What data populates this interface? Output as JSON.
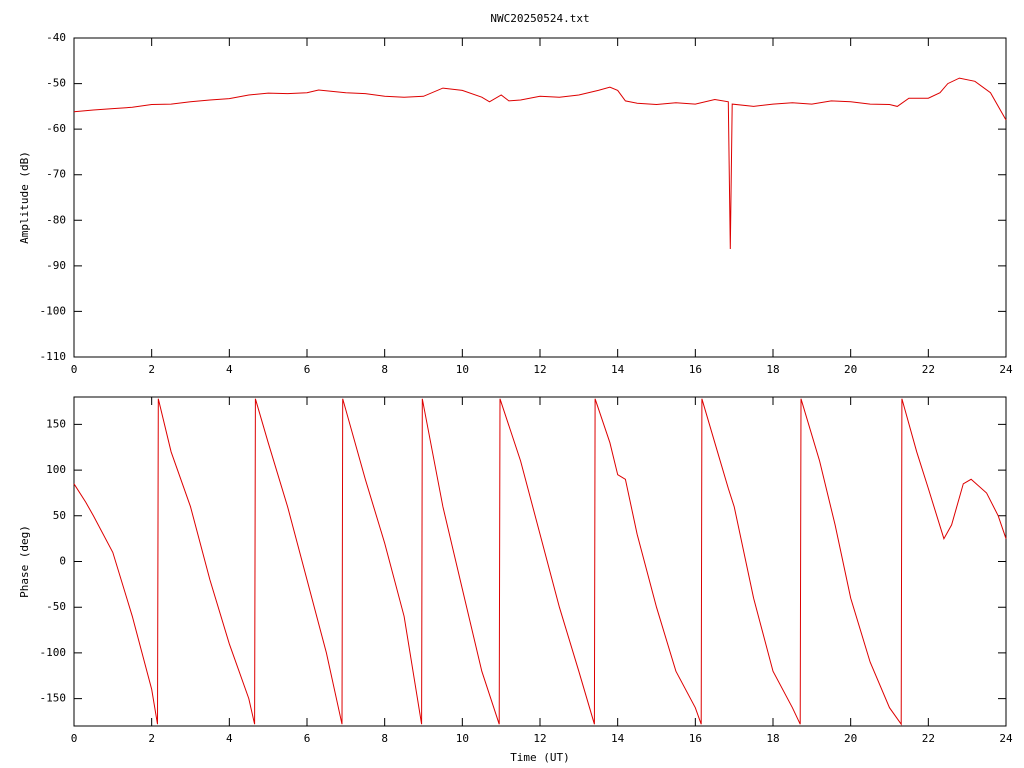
{
  "chart_data": [
    {
      "type": "line",
      "title": "NWC20250524.txt",
      "y_label": "Amplitude (dB)",
      "color": "#dd0000",
      "xlim": [
        0,
        24
      ],
      "xticks": [
        0,
        2,
        4,
        6,
        8,
        10,
        12,
        14,
        16,
        18,
        20,
        22,
        24
      ],
      "ylim": [
        -110,
        -40
      ],
      "yticks": [
        -110,
        -100,
        -90,
        -80,
        -70,
        -60,
        -50,
        -40
      ],
      "x": [
        0,
        0.5,
        1,
        1.5,
        2,
        2.5,
        3,
        3.5,
        4,
        4.5,
        5,
        5.5,
        6,
        6.3,
        7,
        7.5,
        8,
        8.5,
        9,
        9.5,
        10,
        10.5,
        10.7,
        11,
        11.2,
        11.5,
        12,
        12.5,
        13,
        13.5,
        13.8,
        14,
        14.2,
        14.5,
        15,
        15.5,
        16,
        16.5,
        16.85,
        16.9,
        16.95,
        17.5,
        18,
        18.5,
        19,
        19.5,
        20,
        20.5,
        21,
        21.2,
        21.5,
        22,
        22.3,
        22.5,
        22.8,
        23.2,
        23.6,
        24
      ],
      "values": [
        -56.2,
        -55.8,
        -55.5,
        -55.2,
        -54.6,
        -54.5,
        -54,
        -53.6,
        -53.3,
        -52.5,
        -52.1,
        -52.2,
        -52,
        -51.4,
        -52,
        -52.2,
        -52.8,
        -53,
        -52.8,
        -51,
        -51.5,
        -53,
        -54,
        -52.5,
        -53.8,
        -53.6,
        -52.8,
        -53,
        -52.5,
        -51.5,
        -50.8,
        -51.5,
        -53.8,
        -54.3,
        -54.6,
        -54.2,
        -54.5,
        -53.5,
        -54,
        -86.3,
        -54.5,
        -55,
        -54.5,
        -54.2,
        -54.5,
        -53.8,
        -54,
        -54.5,
        -54.6,
        -55,
        -53.2,
        -53.2,
        -52,
        -50,
        -48.8,
        -49.5,
        -52,
        -58
      ]
    },
    {
      "type": "line",
      "x_label": "Time (UT)",
      "y_label": "Phase (deg)",
      "color": "#dd0000",
      "xlim": [
        0,
        24
      ],
      "xticks": [
        0,
        2,
        4,
        6,
        8,
        10,
        12,
        14,
        16,
        18,
        20,
        22,
        24
      ],
      "ylim": [
        -180,
        180
      ],
      "yticks": [
        -150,
        -100,
        -50,
        0,
        50,
        100,
        150
      ],
      "x": [
        0,
        0.3,
        0.5,
        1,
        1.5,
        2,
        2.15,
        2.17,
        2.5,
        3,
        3.5,
        4,
        4.5,
        4.65,
        4.67,
        5,
        5.5,
        6,
        6.5,
        6.9,
        6.92,
        7.5,
        8,
        8.5,
        8.95,
        8.97,
        9.5,
        10,
        10.5,
        10.95,
        10.97,
        11.5,
        12,
        12.5,
        13,
        13.4,
        13.42,
        13.8,
        14,
        14.2,
        14.5,
        15,
        15.5,
        16,
        16.15,
        16.17,
        16.5,
        16.85,
        17,
        17.5,
        18,
        18.5,
        18.7,
        18.72,
        19.2,
        19.6,
        20,
        20.5,
        21,
        21.3,
        21.32,
        21.7,
        22,
        22.4,
        22.6,
        22.9,
        23.1,
        23.5,
        23.8,
        24
      ],
      "values": [
        85,
        65,
        50,
        10,
        -60,
        -140,
        -178,
        178,
        120,
        60,
        -20,
        -90,
        -150,
        -178,
        178,
        130,
        60,
        -20,
        -100,
        -178,
        178,
        90,
        20,
        -60,
        -178,
        178,
        60,
        -30,
        -120,
        -178,
        178,
        110,
        30,
        -50,
        -120,
        -178,
        178,
        130,
        95,
        90,
        30,
        -50,
        -120,
        -160,
        -178,
        178,
        130,
        80,
        60,
        -40,
        -120,
        -160,
        -178,
        178,
        110,
        40,
        -40,
        -110,
        -160,
        -178,
        178,
        120,
        80,
        25,
        40,
        85,
        90,
        75,
        50,
        25
      ]
    }
  ]
}
